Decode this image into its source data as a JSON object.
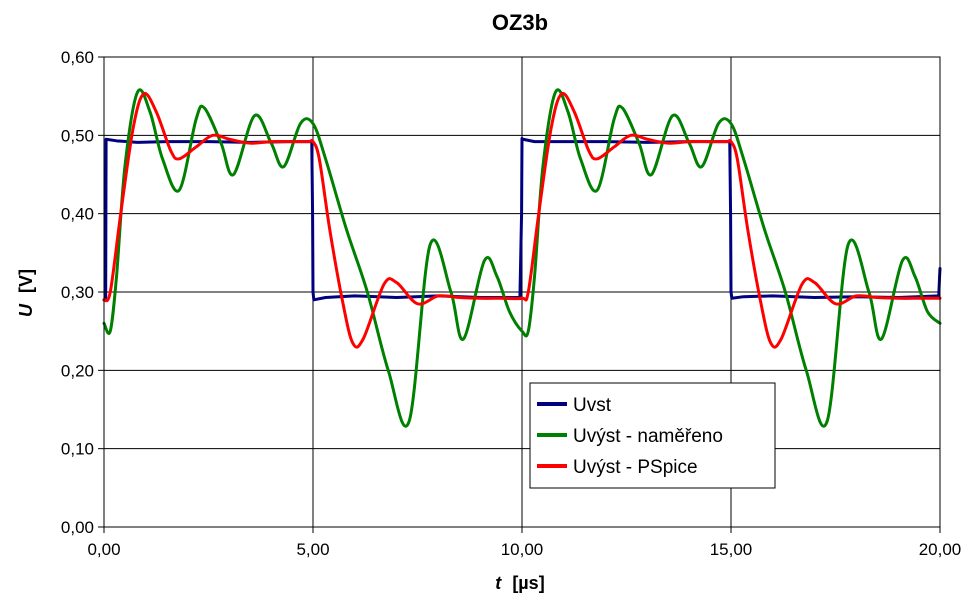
{
  "chart_data": {
    "type": "line",
    "title": "OZ3b",
    "xlabel_symbol": "t",
    "xlabel_unit": "[µs]",
    "ylabel_symbol": "U",
    "ylabel_unit": "[V]",
    "xlim": [
      0,
      20
    ],
    "ylim": [
      0,
      0.6
    ],
    "x_ticks": [
      0,
      5,
      10,
      15,
      20
    ],
    "x_tick_labels": [
      "0,00",
      "5,00",
      "10,00",
      "15,00",
      "20,00"
    ],
    "y_ticks": [
      0,
      0.1,
      0.2,
      0.3,
      0.4,
      0.5,
      0.6
    ],
    "y_tick_labels": [
      "0,00",
      "0,10",
      "0,20",
      "0,30",
      "0,40",
      "0,50",
      "0,60"
    ],
    "grid": true,
    "legend_position": "inside-bottom-center",
    "series": [
      {
        "name": "Uvst",
        "color": "#000080",
        "x": [
          0.0,
          0.04,
          0.05,
          0.3,
          0.8,
          1.5,
          2.5,
          3.5,
          4.5,
          4.97,
          4.99,
          5.0,
          5.02,
          5.3,
          6.0,
          7.0,
          8.0,
          9.0,
          9.95,
          9.99,
          10.0,
          10.02,
          10.3,
          11.0,
          12.0,
          13.0,
          14.0,
          14.97,
          14.99,
          15.0,
          15.02,
          15.3,
          16.0,
          17.0,
          18.0,
          19.0,
          19.97,
          19.99,
          20.0
        ],
        "y": [
          0.29,
          0.29,
          0.495,
          0.493,
          0.491,
          0.492,
          0.492,
          0.491,
          0.492,
          0.492,
          0.4,
          0.3,
          0.29,
          0.293,
          0.295,
          0.293,
          0.295,
          0.293,
          0.293,
          0.4,
          0.496,
          0.495,
          0.492,
          0.492,
          0.492,
          0.491,
          0.492,
          0.492,
          0.4,
          0.3,
          0.292,
          0.294,
          0.295,
          0.293,
          0.294,
          0.293,
          0.295,
          0.32,
          0.33
        ]
      },
      {
        "name": "Uvýst - naměřeno",
        "color": "#008000",
        "x": [
          0.0,
          0.15,
          0.3,
          0.5,
          0.8,
          1.1,
          1.4,
          1.8,
          2.2,
          2.4,
          2.8,
          3.1,
          3.6,
          4.0,
          4.3,
          4.7,
          5.0,
          5.3,
          5.8,
          6.3,
          6.8,
          7.3,
          7.8,
          8.3,
          8.6,
          9.1,
          9.4,
          9.7,
          10.0,
          10.15,
          10.3,
          10.5,
          10.8,
          11.1,
          11.4,
          11.8,
          12.2,
          12.4,
          12.8,
          13.1,
          13.6,
          14.0,
          14.3,
          14.7,
          15.0,
          15.3,
          15.8,
          16.3,
          16.8,
          17.3,
          17.8,
          18.3,
          18.6,
          19.1,
          19.4,
          19.7,
          20.0
        ],
        "y": [
          0.26,
          0.25,
          0.32,
          0.46,
          0.555,
          0.53,
          0.47,
          0.43,
          0.52,
          0.535,
          0.49,
          0.45,
          0.525,
          0.49,
          0.46,
          0.515,
          0.515,
          0.47,
          0.38,
          0.3,
          0.2,
          0.135,
          0.36,
          0.3,
          0.24,
          0.34,
          0.32,
          0.275,
          0.25,
          0.25,
          0.32,
          0.46,
          0.555,
          0.53,
          0.47,
          0.43,
          0.52,
          0.535,
          0.49,
          0.45,
          0.525,
          0.49,
          0.46,
          0.515,
          0.515,
          0.47,
          0.38,
          0.3,
          0.2,
          0.135,
          0.36,
          0.3,
          0.24,
          0.34,
          0.32,
          0.275,
          0.26
        ]
      },
      {
        "name": "Uvýst - PSpice",
        "color": "#FF0000",
        "x": [
          0.0,
          0.15,
          0.4,
          0.7,
          0.95,
          1.25,
          1.6,
          1.8,
          2.2,
          2.6,
          3.0,
          3.5,
          4.0,
          4.5,
          4.9,
          5.0,
          5.15,
          5.4,
          5.7,
          5.95,
          6.2,
          6.7,
          7.0,
          7.5,
          8.0,
          8.5,
          9.0,
          9.5,
          10.0,
          10.15,
          10.4,
          10.7,
          10.95,
          11.25,
          11.6,
          11.8,
          12.2,
          12.6,
          13.0,
          13.5,
          14.0,
          14.5,
          14.9,
          15.0,
          15.15,
          15.4,
          15.7,
          15.95,
          16.2,
          16.7,
          17.0,
          17.5,
          18.0,
          18.5,
          19.0,
          19.5,
          20.0
        ],
        "y": [
          0.29,
          0.3,
          0.4,
          0.51,
          0.553,
          0.53,
          0.48,
          0.47,
          0.485,
          0.5,
          0.495,
          0.49,
          0.492,
          0.492,
          0.492,
          0.492,
          0.47,
          0.38,
          0.29,
          0.235,
          0.24,
          0.31,
          0.312,
          0.285,
          0.295,
          0.293,
          0.292,
          0.292,
          0.292,
          0.3,
          0.4,
          0.51,
          0.553,
          0.53,
          0.48,
          0.47,
          0.485,
          0.5,
          0.495,
          0.49,
          0.492,
          0.492,
          0.492,
          0.492,
          0.47,
          0.38,
          0.29,
          0.235,
          0.24,
          0.31,
          0.312,
          0.285,
          0.295,
          0.293,
          0.292,
          0.292,
          0.292
        ]
      }
    ]
  }
}
